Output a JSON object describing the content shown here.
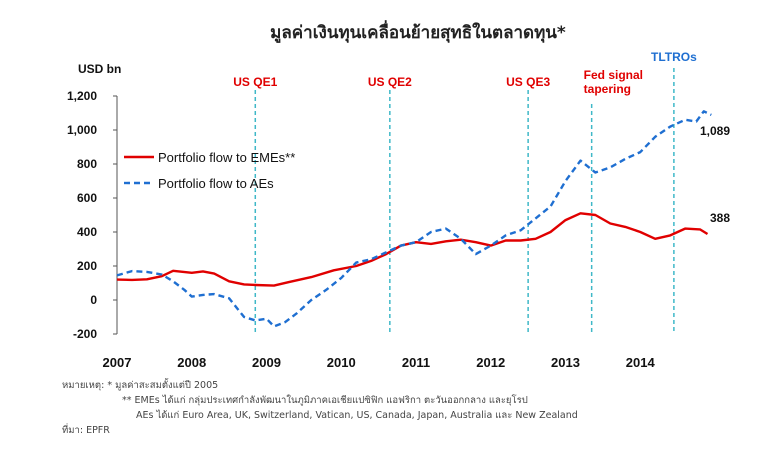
{
  "chart_data": {
    "type": "line",
    "title": "มูลค่าเงินทุนเคลื่อนย้ายสุทธิในตลาดทุน*",
    "ylabel": "USD bn",
    "ylim": [
      -200,
      1200
    ],
    "yticks": [
      -200,
      0,
      200,
      400,
      600,
      800,
      "1,000",
      "1,200"
    ],
    "xlim": [
      2007,
      2015
    ],
    "xticks": [
      "2007",
      "2008",
      "2009",
      "2010",
      "2011",
      "2012",
      "2013",
      "2014"
    ],
    "grid": false,
    "legend": "upper-left",
    "series": [
      {
        "name": "Portfolio flow to EMEs**",
        "color": "#e00000",
        "style": "solid",
        "x": [
          2007.0,
          2007.2,
          2007.4,
          2007.6,
          2007.75,
          2008.0,
          2008.15,
          2008.3,
          2008.5,
          2008.7,
          2008.85,
          2009.1,
          2009.3,
          2009.6,
          2009.9,
          2010.2,
          2010.4,
          2010.6,
          2010.8,
          2011.0,
          2011.2,
          2011.4,
          2011.6,
          2011.8,
          2012.0,
          2012.2,
          2012.4,
          2012.6,
          2012.8,
          2013.0,
          2013.2,
          2013.4,
          2013.6,
          2013.8,
          2014.0,
          2014.2,
          2014.4,
          2014.6,
          2014.8,
          2014.9
        ],
        "values": [
          120,
          118,
          122,
          140,
          172,
          160,
          168,
          155,
          110,
          92,
          88,
          85,
          105,
          135,
          175,
          200,
          230,
          270,
          320,
          340,
          330,
          345,
          355,
          340,
          320,
          350,
          350,
          360,
          400,
          470,
          510,
          500,
          450,
          430,
          400,
          360,
          380,
          420,
          415,
          388
        ]
      },
      {
        "name": "Portfolio flow to AEs",
        "color": "#1f6fd1",
        "style": "dashed",
        "x": [
          2007.0,
          2007.2,
          2007.4,
          2007.6,
          2007.75,
          2007.9,
          2008.0,
          2008.15,
          2008.3,
          2008.5,
          2008.7,
          2008.85,
          2009.0,
          2009.1,
          2009.25,
          2009.4,
          2009.6,
          2009.8,
          2010.0,
          2010.2,
          2010.4,
          2010.6,
          2010.8,
          2011.0,
          2011.2,
          2011.4,
          2011.6,
          2011.8,
          2012.0,
          2012.2,
          2012.4,
          2012.6,
          2012.8,
          2013.0,
          2013.2,
          2013.4,
          2013.6,
          2013.8,
          2014.0,
          2014.2,
          2014.4,
          2014.6,
          2014.75,
          2014.85,
          2014.95
        ],
        "values": [
          145,
          170,
          165,
          150,
          110,
          60,
          20,
          30,
          35,
          10,
          -100,
          -120,
          -110,
          -155,
          -130,
          -80,
          0,
          60,
          130,
          220,
          240,
          280,
          320,
          340,
          400,
          420,
          360,
          270,
          320,
          380,
          410,
          480,
          550,
          700,
          820,
          750,
          780,
          830,
          870,
          960,
          1020,
          1060,
          1050,
          1110,
          1089
        ]
      }
    ],
    "vlines": [
      {
        "x": 2008.85,
        "label": "US QE1",
        "color": "#e00000"
      },
      {
        "x": 2010.65,
        "label": "US QE2",
        "color": "#e00000"
      },
      {
        "x": 2012.5,
        "label": "US QE3",
        "color": "#e00000"
      },
      {
        "x": 2013.35,
        "label": "Fed signal tapering",
        "label_lines": [
          "Fed signal",
          "tapering"
        ],
        "color": "#e00000"
      },
      {
        "x": 2014.45,
        "label": "TLTROs",
        "color": "#1f6fd1"
      }
    ],
    "end_labels": [
      {
        "series": 0,
        "text": "388"
      },
      {
        "series": 1,
        "text": "1,089"
      }
    ]
  },
  "notes": [
    "หมายเหตุ: * มูลค่าสะสมตั้งแต่ปี 2005",
    "** EMEs ได้แก่ กลุ่มประเทศกำลังพัฒนาในภูมิภาคเอเชียแปซิฟิก แอฟริกา ตะวันออกกลาง และยุโรป",
    "AEs ได้แก่ Euro Area, UK, Switzerland, Vatican, US, Canada, Japan, Australia และ New Zealand",
    "ที่มา: EPFR"
  ]
}
